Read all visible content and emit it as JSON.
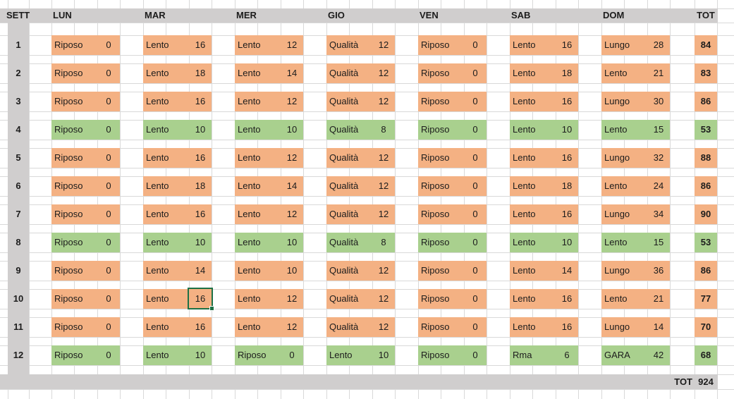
{
  "header": {
    "week": "SETT",
    "days": [
      "LUN",
      "MAR",
      "MER",
      "GIO",
      "VEN",
      "SAB",
      "DOM"
    ],
    "total": "TOT"
  },
  "weeks": [
    {
      "num": 1,
      "color": "orange",
      "days": [
        {
          "label": "Riposo",
          "value": 0
        },
        {
          "label": "Lento",
          "value": 16
        },
        {
          "label": "Lento",
          "value": 12
        },
        {
          "label": "Qualità",
          "value": 12
        },
        {
          "label": "Riposo",
          "value": 0
        },
        {
          "label": "Lento",
          "value": 16
        },
        {
          "label": "Lungo",
          "value": 28
        }
      ],
      "total": 84
    },
    {
      "num": 2,
      "color": "orange",
      "days": [
        {
          "label": "Riposo",
          "value": 0
        },
        {
          "label": "Lento",
          "value": 18
        },
        {
          "label": "Lento",
          "value": 14
        },
        {
          "label": "Qualità",
          "value": 12
        },
        {
          "label": "Riposo",
          "value": 0
        },
        {
          "label": "Lento",
          "value": 18
        },
        {
          "label": "Lento",
          "value": 21
        }
      ],
      "total": 83
    },
    {
      "num": 3,
      "color": "orange",
      "days": [
        {
          "label": "Riposo",
          "value": 0
        },
        {
          "label": "Lento",
          "value": 16
        },
        {
          "label": "Lento",
          "value": 12
        },
        {
          "label": "Qualità",
          "value": 12
        },
        {
          "label": "Riposo",
          "value": 0
        },
        {
          "label": "Lento",
          "value": 16
        },
        {
          "label": "Lungo",
          "value": 30
        }
      ],
      "total": 86
    },
    {
      "num": 4,
      "color": "green",
      "days": [
        {
          "label": "Riposo",
          "value": 0
        },
        {
          "label": "Lento",
          "value": 10
        },
        {
          "label": "Lento",
          "value": 10
        },
        {
          "label": "Qualità",
          "value": 8
        },
        {
          "label": "Riposo",
          "value": 0
        },
        {
          "label": "Lento",
          "value": 10
        },
        {
          "label": "Lento",
          "value": 15
        }
      ],
      "total": 53
    },
    {
      "num": 5,
      "color": "orange",
      "days": [
        {
          "label": "Riposo",
          "value": 0
        },
        {
          "label": "Lento",
          "value": 16
        },
        {
          "label": "Lento",
          "value": 12
        },
        {
          "label": "Qualità",
          "value": 12
        },
        {
          "label": "Riposo",
          "value": 0
        },
        {
          "label": "Lento",
          "value": 16
        },
        {
          "label": "Lungo",
          "value": 32
        }
      ],
      "total": 88
    },
    {
      "num": 6,
      "color": "orange",
      "days": [
        {
          "label": "Riposo",
          "value": 0
        },
        {
          "label": "Lento",
          "value": 18
        },
        {
          "label": "Lento",
          "value": 14
        },
        {
          "label": "Qualità",
          "value": 12
        },
        {
          "label": "Riposo",
          "value": 0
        },
        {
          "label": "Lento",
          "value": 18
        },
        {
          "label": "Lento",
          "value": 24
        }
      ],
      "total": 86
    },
    {
      "num": 7,
      "color": "orange",
      "days": [
        {
          "label": "Riposo",
          "value": 0
        },
        {
          "label": "Lento",
          "value": 16
        },
        {
          "label": "Lento",
          "value": 12
        },
        {
          "label": "Qualità",
          "value": 12
        },
        {
          "label": "Riposo",
          "value": 0
        },
        {
          "label": "Lento",
          "value": 16
        },
        {
          "label": "Lungo",
          "value": 34
        }
      ],
      "total": 90
    },
    {
      "num": 8,
      "color": "green",
      "days": [
        {
          "label": "Riposo",
          "value": 0
        },
        {
          "label": "Lento",
          "value": 10
        },
        {
          "label": "Lento",
          "value": 10
        },
        {
          "label": "Qualità",
          "value": 8
        },
        {
          "label": "Riposo",
          "value": 0
        },
        {
          "label": "Lento",
          "value": 10
        },
        {
          "label": "Lento",
          "value": 15
        }
      ],
      "total": 53
    },
    {
      "num": 9,
      "color": "orange",
      "days": [
        {
          "label": "Riposo",
          "value": 0
        },
        {
          "label": "Lento",
          "value": 14
        },
        {
          "label": "Lento",
          "value": 10
        },
        {
          "label": "Qualità",
          "value": 12
        },
        {
          "label": "Riposo",
          "value": 0
        },
        {
          "label": "Lento",
          "value": 14
        },
        {
          "label": "Lungo",
          "value": 36
        }
      ],
      "total": 86
    },
    {
      "num": 10,
      "color": "orange",
      "days": [
        {
          "label": "Riposo",
          "value": 0
        },
        {
          "label": "Lento",
          "value": 16
        },
        {
          "label": "Lento",
          "value": 12
        },
        {
          "label": "Qualità",
          "value": 12
        },
        {
          "label": "Riposo",
          "value": 0
        },
        {
          "label": "Lento",
          "value": 16
        },
        {
          "label": "Lento",
          "value": 21
        }
      ],
      "total": 77
    },
    {
      "num": 11,
      "color": "orange",
      "days": [
        {
          "label": "Riposo",
          "value": 0
        },
        {
          "label": "Lento",
          "value": 16
        },
        {
          "label": "Lento",
          "value": 12
        },
        {
          "label": "Qualità",
          "value": 12
        },
        {
          "label": "Riposo",
          "value": 0
        },
        {
          "label": "Lento",
          "value": 16
        },
        {
          "label": "Lungo",
          "value": 14
        }
      ],
      "total": 70
    },
    {
      "num": 12,
      "color": "green",
      "days": [
        {
          "label": "Riposo",
          "value": 0
        },
        {
          "label": "Lento",
          "value": 10
        },
        {
          "label": "Riposo",
          "value": 0
        },
        {
          "label": "Lento",
          "value": 10
        },
        {
          "label": "Riposo",
          "value": 0
        },
        {
          "label": "Rma",
          "value": 6
        },
        {
          "label": "GARA",
          "value": 42
        }
      ],
      "total": 68
    }
  ],
  "footer": {
    "label": "TOT",
    "value": 924
  },
  "selection": {
    "week": 10,
    "day": "MAR",
    "value": 16
  },
  "colors": {
    "orange": "#F4B183",
    "green": "#A9D08E",
    "header_gray": "#D0CECE",
    "selection_green": "#1E7145",
    "gridline": "#D9D9D9"
  }
}
